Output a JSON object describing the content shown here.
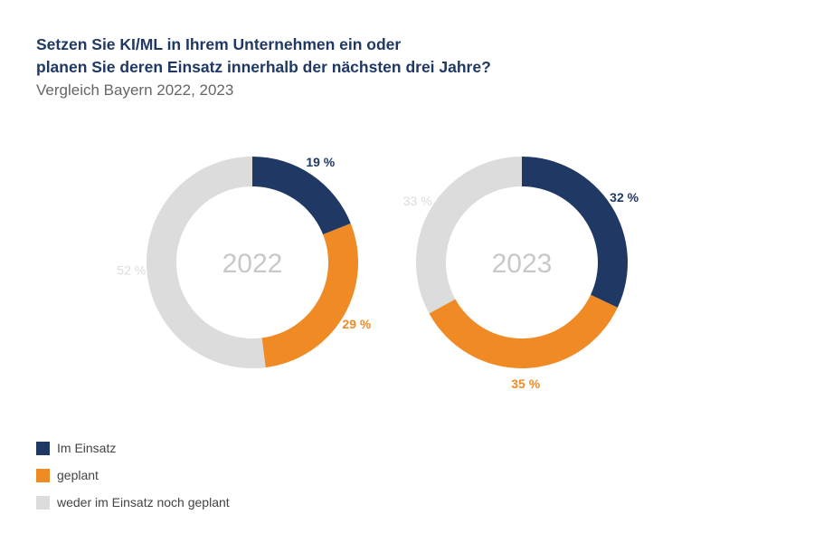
{
  "title_lines": [
    "Setzen Sie KI/ML in Ihrem Unternehmen ein oder",
    "planen Sie deren Einsatz innerhalb der nächsten drei Jahre?"
  ],
  "subtitle": "Vergleich Bayern 2022, 2023",
  "colors": {
    "im_einsatz": "#1f3864",
    "geplant": "#f08a24",
    "weder": "#dcdcdc",
    "title": "#1f3864",
    "center_label": "#c8c8c8"
  },
  "legend": [
    {
      "label": "Im Einsatz",
      "color": "#1f3864"
    },
    {
      "label": "geplant",
      "color": "#f08a24"
    },
    {
      "label": "weder im Einsatz noch geplant",
      "color": "#dcdcdc"
    }
  ],
  "chart_data": [
    {
      "type": "pie",
      "donut": true,
      "center_label": "2022",
      "slices": [
        {
          "name": "Im Einsatz",
          "value": 19,
          "label": "19 %"
        },
        {
          "name": "geplant",
          "value": 29,
          "label": "29 %"
        },
        {
          "name": "weder im Einsatz noch geplant",
          "value": 52,
          "label": "52 %"
        }
      ]
    },
    {
      "type": "pie",
      "donut": true,
      "center_label": "2023",
      "slices": [
        {
          "name": "Im Einsatz",
          "value": 32,
          "label": "32 %"
        },
        {
          "name": "geplant",
          "value": 35,
          "label": "35 %"
        },
        {
          "name": "weder im Einsatz noch geplant",
          "value": 33,
          "label": "33 %"
        }
      ]
    }
  ]
}
